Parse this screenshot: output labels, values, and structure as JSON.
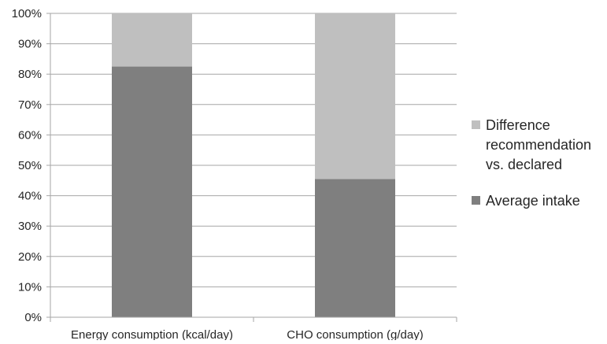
{
  "chart_data": {
    "type": "bar",
    "stacked": "percent",
    "categories": [
      "Energy consumption (kcal/day)",
      "CHO consumption  (g/day)"
    ],
    "series": [
      {
        "name": "Average intake",
        "values": [
          82.5,
          45.5
        ],
        "color": "#7f7f7f"
      },
      {
        "name": "Difference recommendation vs. declared",
        "legend_lines": [
          "Difference",
          "recommendation",
          "vs. declared"
        ],
        "values": [
          17.5,
          54.5
        ],
        "color": "#bfbfbf"
      }
    ],
    "y_ticks": [
      "0%",
      "10%",
      "20%",
      "30%",
      "40%",
      "50%",
      "60%",
      "70%",
      "80%",
      "90%",
      "100%"
    ],
    "ylim": [
      0,
      100
    ],
    "grid": true,
    "gridline_color": "#a6a6a6",
    "text_color": "#262626",
    "legend_position": "right",
    "legend_order": [
      1,
      0
    ],
    "title": "",
    "xlabel": "",
    "ylabel": ""
  }
}
